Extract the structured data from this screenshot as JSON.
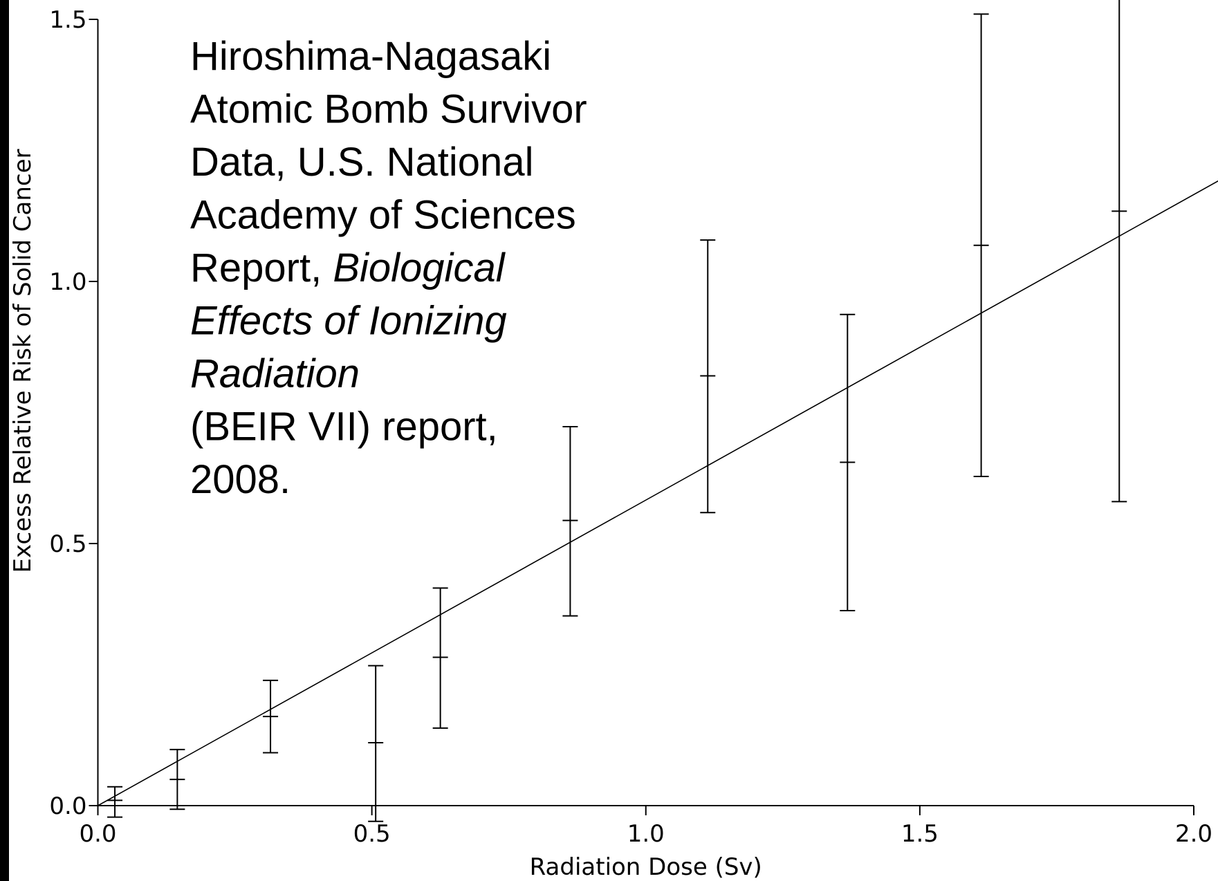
{
  "chart_data": {
    "type": "errorbar",
    "x_label": "Radiation Dose (Sv)",
    "y_label": "Excess Relative Risk of Solid Cancer",
    "annotation": [
      [
        {
          "text": "Hiroshima-Nagasaki",
          "italic": false
        }
      ],
      [
        {
          "text": "Atomic Bomb Survivor",
          "italic": false
        }
      ],
      [
        {
          "text": "Data, U.S. National",
          "italic": false
        }
      ],
      [
        {
          "text": "Academy of Sciences",
          "italic": false
        }
      ],
      [
        {
          "text": "Report, ",
          "italic": false
        },
        {
          "text": "Biological",
          "italic": true
        }
      ],
      [
        {
          "text": "Effects of Ionizing",
          "italic": true
        }
      ],
      [
        {
          "text": "Radiation",
          "italic": true
        }
      ],
      [
        {
          "text": "(BEIR VII) report,",
          "italic": false
        }
      ],
      [
        {
          "text": "2008.",
          "italic": false
        }
      ]
    ],
    "x": [
      0.031,
      0.145,
      0.315,
      0.507,
      0.625,
      0.862,
      1.113,
      1.368,
      1.612,
      1.864
    ],
    "values": [
      0.01,
      0.05,
      0.17,
      0.12,
      0.283,
      0.544,
      0.82,
      0.655,
      1.069,
      1.134
    ],
    "lower": [
      -0.022,
      -0.007,
      0.101,
      -0.03,
      0.148,
      0.362,
      0.559,
      0.372,
      0.628,
      0.58
    ],
    "upper": [
      0.036,
      0.107,
      0.239,
      0.267,
      0.415,
      0.723,
      1.079,
      0.937,
      1.51,
      1.55
    ],
    "fit_line": {
      "x": [
        0,
        2.045
      ],
      "y": [
        0,
        1.192
      ]
    },
    "color": "#000000",
    "xlim": [
      0,
      2.0
    ],
    "ylim": [
      0,
      1.5
    ],
    "xticks": [
      {
        "value": 0,
        "label": "0.0"
      },
      {
        "value": 0.5,
        "label": "0.5"
      },
      {
        "value": 1.0,
        "label": "1.0"
      },
      {
        "value": 1.5,
        "label": "1.5"
      },
      {
        "value": 2.0,
        "label": "2.0"
      }
    ],
    "yticks": [
      {
        "value": 0,
        "label": "0.0"
      },
      {
        "value": 0.5,
        "label": "0.5"
      },
      {
        "value": 1.0,
        "label": "1.0"
      },
      {
        "value": 1.5,
        "label": "1.5"
      }
    ]
  }
}
